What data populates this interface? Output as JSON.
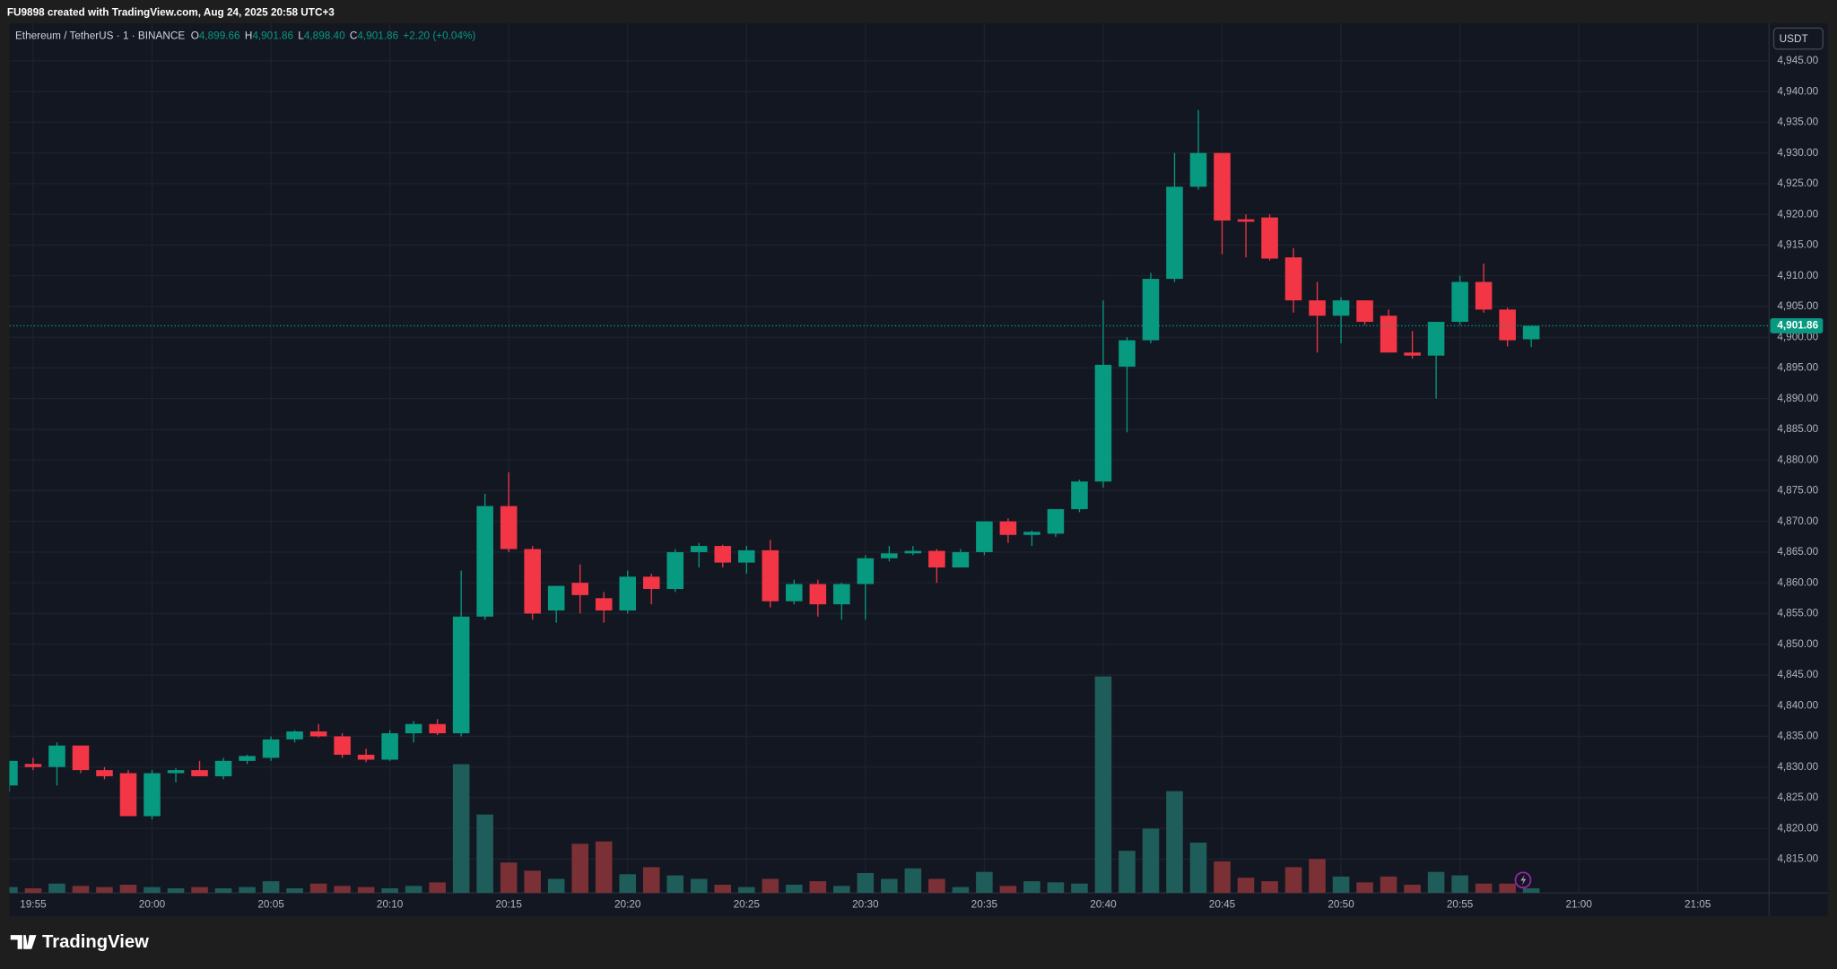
{
  "header": {
    "text": "FU9898 created with TradingView.com, Aug 24, 2025 20:58 UTC+3"
  },
  "footer": {
    "logo": "TradingView"
  },
  "chart_data": {
    "type": "candlestick",
    "title": "Ethereum / TetherUS · 1 · BINANCE",
    "legend_values": [
      {
        "label": "O",
        "value": "4,899.66"
      },
      {
        "label": "H",
        "value": "4,901.86"
      },
      {
        "label": "L",
        "value": "4,898.40"
      },
      {
        "label": "C",
        "value": "4,901.86"
      }
    ],
    "change": "+2.20 (+0.04%)",
    "currency": "USDT",
    "x": [
      "19:54",
      "19:55",
      "19:56",
      "19:57",
      "19:58",
      "19:59",
      "20:00",
      "20:01",
      "20:02",
      "20:03",
      "20:04",
      "20:05",
      "20:06",
      "20:07",
      "20:08",
      "20:09",
      "20:10",
      "20:11",
      "20:12",
      "20:13",
      "20:14",
      "20:15",
      "20:16",
      "20:17",
      "20:18",
      "20:19",
      "20:20",
      "20:21",
      "20:22",
      "20:23",
      "20:24",
      "20:25",
      "20:26",
      "20:27",
      "20:28",
      "20:29",
      "20:30",
      "20:31",
      "20:32",
      "20:33",
      "20:34",
      "20:35",
      "20:36",
      "20:37",
      "20:38",
      "20:39",
      "20:40",
      "20:41",
      "20:42",
      "20:43",
      "20:44",
      "20:45",
      "20:46",
      "20:47",
      "20:48",
      "20:49",
      "20:50",
      "20:51",
      "20:52",
      "20:53",
      "20:54",
      "20:55",
      "20:56",
      "20:57",
      "20:58"
    ],
    "open": [
      4827,
      4830.5,
      4830,
      4833.5,
      4829.5,
      4829,
      4822,
      4829,
      4829.5,
      4828.5,
      4831,
      4831.5,
      4834.5,
      4835.8,
      4835,
      4832,
      4831.2,
      4835.5,
      4837,
      4835.5,
      4854.5,
      4872.5,
      4865.5,
      4855.5,
      4860,
      4857.5,
      4855.5,
      4861,
      4859,
      4865,
      4866,
      4863.3,
      4865.3,
      4857,
      4859.8,
      4856.5,
      4859.8,
      4864,
      4864.8,
      4865.2,
      4862.5,
      4865,
      4870,
      4867.8,
      4868,
      4872,
      4876.5,
      4895.2,
      4899.5,
      4909.5,
      4924.5,
      4930,
      4919.2,
      4919.5,
      4913,
      4906,
      4903.5,
      4906,
      4903.5,
      4897.5,
      4897,
      4902.5,
      4909,
      4904.5,
      4899.66
    ],
    "high": [
      4831,
      4831.5,
      4834,
      4833.5,
      4830,
      4829.5,
      4829.5,
      4829.8,
      4831,
      4831.5,
      4832,
      4835,
      4836,
      4837,
      4835.5,
      4833,
      4836,
      4837.5,
      4837.8,
      4862,
      4874.5,
      4878,
      4866,
      4859.5,
      4863,
      4858.5,
      4862,
      4861.5,
      4865.5,
      4866.5,
      4866.2,
      4866,
      4867,
      4860.5,
      4860.5,
      4860,
      4864.5,
      4866,
      4866,
      4865.5,
      4865.5,
      4870,
      4870.5,
      4868.5,
      4872,
      4876.8,
      4906,
      4900,
      4910.5,
      4930,
      4937,
      4930,
      4920,
      4920,
      4914.5,
      4909,
      4906.5,
      4906,
      4904.5,
      4901,
      4902.5,
      4910,
      4912,
      4904.8,
      4901.86
    ],
    "low": [
      4826,
      4829.5,
      4827,
      4829,
      4828,
      4822,
      4821.5,
      4827.5,
      4828.5,
      4828,
      4830.5,
      4831,
      4834,
      4834.8,
      4831.5,
      4830.8,
      4831,
      4834,
      4835.2,
      4835,
      4854,
      4865,
      4854,
      4853.5,
      4855,
      4853.5,
      4855,
      4856.5,
      4858.5,
      4862.5,
      4862.5,
      4861.5,
      4856,
      4856.5,
      4854.5,
      4854,
      4854,
      4863.5,
      4864.5,
      4860,
      4862.5,
      4864.5,
      4866.5,
      4866,
      4867.5,
      4871.5,
      4875.5,
      4884.5,
      4899,
      4909,
      4924,
      4913.5,
      4913,
      4912.5,
      4904,
      4897.5,
      4899,
      4902,
      4897.5,
      4896.5,
      4890,
      4902,
      4904,
      4898.5,
      4898.4
    ],
    "close": [
      4831,
      4830,
      4833.5,
      4829.5,
      4828.5,
      4822,
      4829,
      4829.5,
      4828.5,
      4831,
      4831.8,
      4834.5,
      4835.8,
      4835,
      4832,
      4831.2,
      4835.5,
      4837,
      4835.5,
      4854.5,
      4872.5,
      4865.5,
      4855,
      4859.5,
      4858,
      4855.5,
      4861,
      4859,
      4865,
      4866,
      4863.3,
      4865.3,
      4857,
      4859.8,
      4856.5,
      4859.8,
      4864,
      4864.8,
      4865.2,
      4862.5,
      4865,
      4870,
      4867.8,
      4868.3,
      4872,
      4876.5,
      4895.5,
      4899.5,
      4909.5,
      4924.5,
      4930,
      4919,
      4918.8,
      4912.8,
      4906,
      4903.5,
      4906,
      4902.5,
      4897.5,
      4897,
      4902.5,
      4909,
      4904.5,
      4899.5,
      4901.86
    ],
    "volume": [
      5,
      4,
      8,
      6,
      5,
      7,
      5,
      4,
      5,
      4,
      5,
      10,
      4,
      8,
      6,
      5,
      4,
      6,
      9,
      110,
      67,
      26,
      19,
      12,
      42,
      44,
      16,
      22,
      15,
      12,
      7,
      5,
      12,
      7,
      10,
      6,
      17,
      12,
      21,
      12,
      5,
      18,
      6,
      10,
      9,
      8,
      185,
      36,
      55,
      87,
      43,
      27,
      13,
      10,
      22,
      29,
      14,
      9,
      14,
      7,
      18,
      15,
      8,
      8,
      4
    ],
    "up_color": "#089981",
    "down_color": "#f23645",
    "up_volume_color": "#1f5d5b",
    "down_volume_color": "#7b3036",
    "xlim": [
      "19:54",
      "21:08"
    ],
    "xticks": [
      "19:55",
      "20:00",
      "20:05",
      "20:10",
      "20:15",
      "20:20",
      "20:25",
      "20:30",
      "20:35",
      "20:40",
      "20:45",
      "20:50",
      "20:55",
      "21:00",
      "21:05"
    ],
    "ylim": [
      4809.5,
      4951.1
    ],
    "yticks": [
      {
        "value": 4815,
        "label": "4,815.00"
      },
      {
        "value": 4820,
        "label": "4,820.00"
      },
      {
        "value": 4825,
        "label": "4,825.00"
      },
      {
        "value": 4830,
        "label": "4,830.00"
      },
      {
        "value": 4835,
        "label": "4,835.00"
      },
      {
        "value": 4840,
        "label": "4,840.00"
      },
      {
        "value": 4845,
        "label": "4,845.00"
      },
      {
        "value": 4850,
        "label": "4,850.00"
      },
      {
        "value": 4855,
        "label": "4,855.00"
      },
      {
        "value": 4860,
        "label": "4,860.00"
      },
      {
        "value": 4865,
        "label": "4,865.00"
      },
      {
        "value": 4870,
        "label": "4,870.00"
      },
      {
        "value": 4875,
        "label": "4,875.00"
      },
      {
        "value": 4880,
        "label": "4,880.00"
      },
      {
        "value": 4885,
        "label": "4,885.00"
      },
      {
        "value": 4890,
        "label": "4,890.00"
      },
      {
        "value": 4895,
        "label": "4,895.00"
      },
      {
        "value": 4900,
        "label": "4,900.00"
      },
      {
        "value": 4905,
        "label": "4,905.00"
      },
      {
        "value": 4910,
        "label": "4,910.00"
      },
      {
        "value": 4915,
        "label": "4,915.00"
      },
      {
        "value": 4920,
        "label": "4,920.00"
      },
      {
        "value": 4925,
        "label": "4,925.00"
      },
      {
        "value": 4930,
        "label": "4,930.00"
      },
      {
        "value": 4935,
        "label": "4,935.00"
      },
      {
        "value": 4940,
        "label": "4,940.00"
      },
      {
        "value": 4945,
        "label": "4,945.00"
      }
    ],
    "vlim": [
      0,
      743
    ],
    "last_price": {
      "value": 4901.86,
      "label": "4,901.86"
    },
    "grid": true
  }
}
